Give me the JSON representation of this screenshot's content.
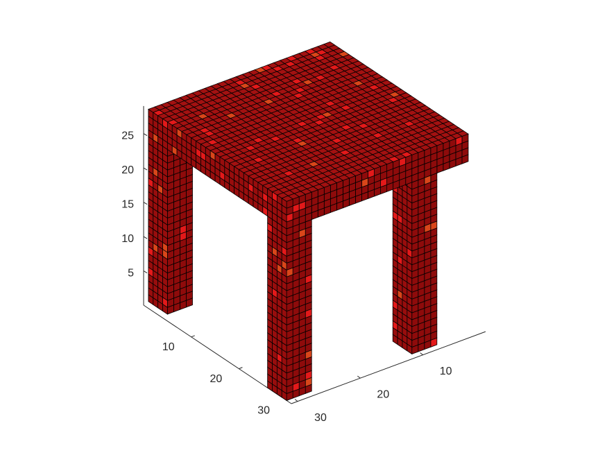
{
  "chart_data": {
    "type": "voxel",
    "xlim": [
      0,
      31
    ],
    "ylim": [
      0,
      31
    ],
    "zlim": [
      0,
      29
    ],
    "xticks": [
      10,
      20,
      30
    ],
    "yticks": [
      10,
      20,
      30
    ],
    "zticks": [
      5,
      10,
      15,
      20,
      25
    ],
    "color": "#9a0d0d"
  }
}
